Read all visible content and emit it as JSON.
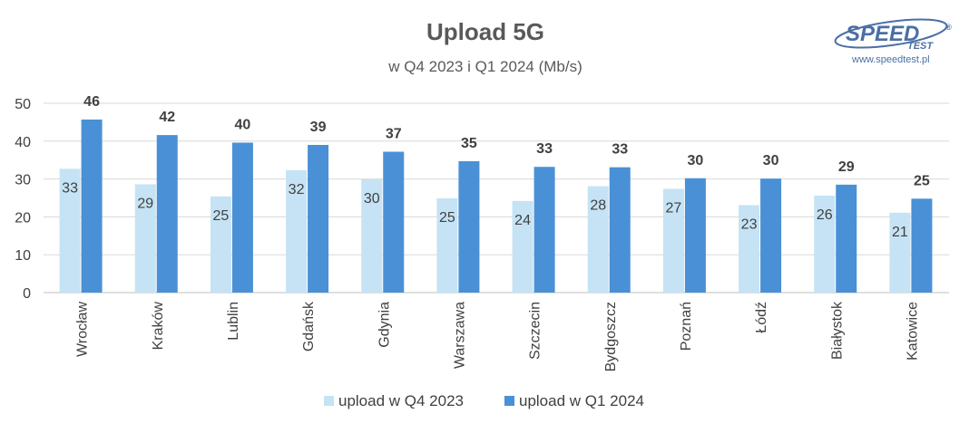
{
  "colors": {
    "q4": "#c5e3f4",
    "q1": "#4a90d6",
    "grid": "#d9d9d9",
    "logo": "#4a6fa5"
  },
  "logo": {
    "name": "SPEED",
    "sub": "TEST",
    "registered": "®",
    "url": "www.speedtest.pl"
  },
  "chart_data": {
    "type": "bar",
    "title": "Upload 5G",
    "subtitle": "w Q4 2023 i Q1 2024 (Mb/s)",
    "xlabel": "",
    "ylabel": "",
    "ylim": [
      0,
      50
    ],
    "yticks": [
      0,
      10,
      20,
      30,
      40,
      50
    ],
    "grid": true,
    "legend_position": "bottom",
    "categories": [
      "Wrocław",
      "Kraków",
      "Lublin",
      "Gdańsk",
      "Gdynia",
      "Warszawa",
      "Szczecin",
      "Bydgoszcz",
      "Poznań",
      "Łódź",
      "Białystok",
      "Katowice"
    ],
    "series": [
      {
        "name": "upload w Q4 2023",
        "values": [
          32.7,
          28.6,
          25.4,
          32.3,
          29.9,
          24.9,
          24.2,
          28.1,
          27.4,
          23.1,
          25.6,
          21.1
        ],
        "labels": [
          "33",
          "29",
          "25",
          "32",
          "30",
          "25",
          "24",
          "28",
          "27",
          "23",
          "26",
          "21"
        ]
      },
      {
        "name": "upload w Q1 2024",
        "values": [
          45.7,
          41.6,
          39.6,
          39.0,
          37.2,
          34.7,
          33.2,
          33.1,
          30.2,
          30.1,
          28.5,
          24.8
        ],
        "labels": [
          "46",
          "42",
          "40",
          "39",
          "37",
          "35",
          "33",
          "33",
          "30",
          "30",
          "29",
          "25"
        ]
      }
    ]
  }
}
